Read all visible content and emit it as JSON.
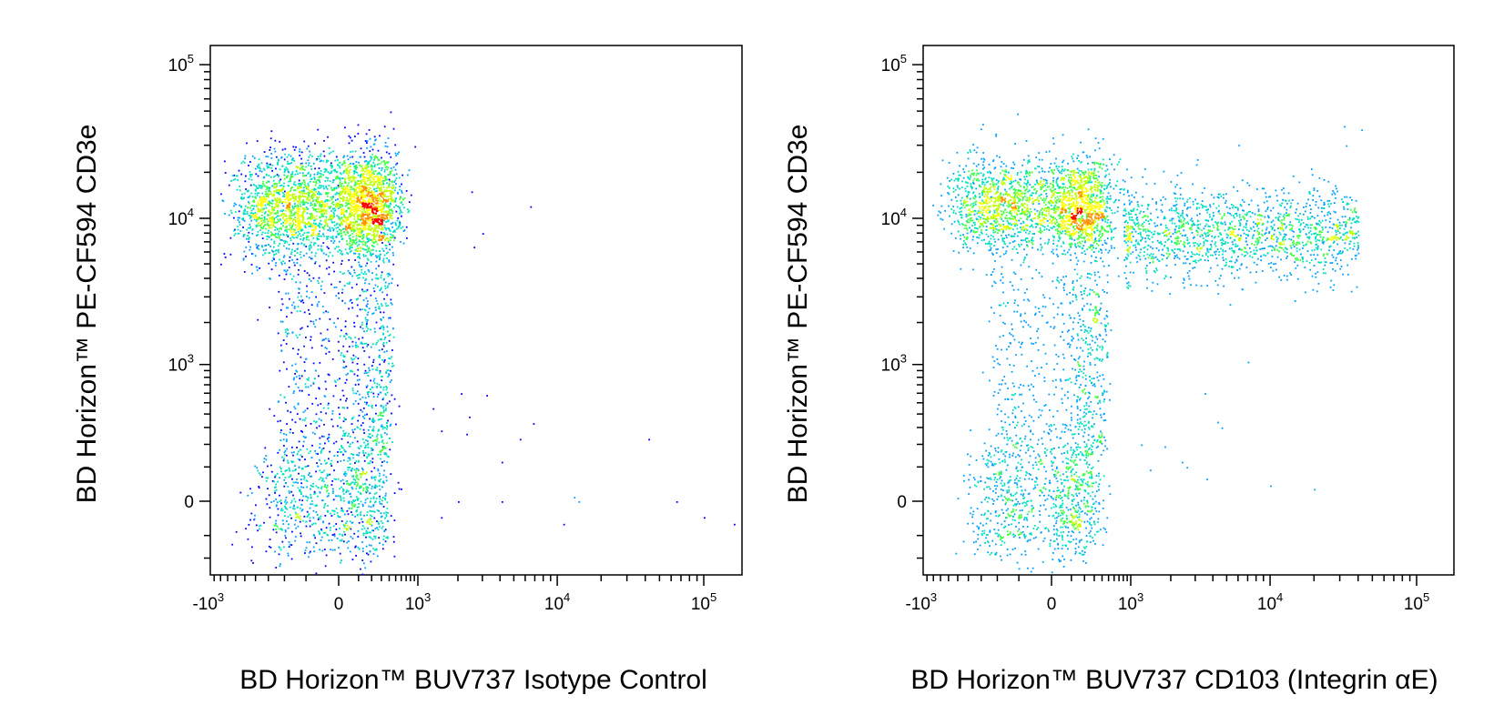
{
  "colors": {
    "background": "#ffffff",
    "axis": "#000000",
    "density_scale": [
      "#0000ff",
      "#00a0ff",
      "#00e0c0",
      "#40ff40",
      "#c0ff00",
      "#ffff00",
      "#ff9000",
      "#ff0000"
    ]
  },
  "chart_data": [
    {
      "type": "scatter",
      "title": "",
      "xlabel": "BD Horizon™ BUV737 Isotype Control",
      "ylabel": "BD Horizon™ PE-CF594 CD3e",
      "xscale": "biexponential",
      "yscale": "biexponential",
      "xlim": [
        -2000,
        200000
      ],
      "ylim": [
        -300,
        250000
      ],
      "x_ticks": [
        {
          "value": -1000,
          "base": "-10",
          "exp": "3"
        },
        {
          "value": 0,
          "base": "0",
          "exp": ""
        },
        {
          "value": 1000,
          "base": "10",
          "exp": "3"
        },
        {
          "value": 10000,
          "base": "10",
          "exp": "4"
        },
        {
          "value": 100000,
          "base": "10",
          "exp": "5"
        }
      ],
      "y_ticks": [
        {
          "value": 0,
          "base": "0",
          "exp": ""
        },
        {
          "value": 1000,
          "base": "10",
          "exp": "3"
        },
        {
          "value": 10000,
          "base": "10",
          "exp": "4"
        },
        {
          "value": 100000,
          "base": "10",
          "exp": "5"
        }
      ],
      "populations": [
        {
          "name": "",
          "center": [
            0,
            12000
          ],
          "spread_x": 250,
          "spread_y_decades": 0.18,
          "count": 3200,
          "peak_density": "high"
        },
        {
          "name": "",
          "center": [
            0,
            0
          ],
          "spread_x": 180,
          "spread_y": 90,
          "count": 900,
          "peak_density": "medium"
        },
        {
          "name": "",
          "x_range": [
            -200,
            400
          ],
          "y_range": [
            150,
            4500
          ],
          "count": 800,
          "peak_density": "low"
        }
      ],
      "outliers": [
        [
          2500,
          15000
        ],
        [
          6500,
          12000
        ],
        [
          3000,
          8000
        ],
        [
          2600,
          6500
        ],
        [
          2100,
          600
        ],
        [
          3200,
          580
        ],
        [
          2400,
          380
        ],
        [
          1300,
          450
        ],
        [
          1500,
          280
        ],
        [
          2300,
          260
        ],
        [
          6800,
          330
        ],
        [
          5500,
          230
        ],
        [
          42000,
          230
        ],
        [
          4100,
          120
        ],
        [
          2000,
          0
        ],
        [
          4100,
          0
        ],
        [
          13000,
          10
        ],
        [
          14000,
          0
        ],
        [
          65000,
          0
        ],
        [
          100000,
          -40
        ],
        [
          160000,
          -60
        ],
        [
          11000,
          -60
        ],
        [
          1500,
          -40
        ]
      ],
      "grid": false,
      "legend": "none"
    },
    {
      "type": "scatter",
      "title": "",
      "xlabel": "BD Horizon™ BUV737 CD103 (Integrin αE)",
      "ylabel": "BD Horizon™ PE-CF594 CD3e",
      "xscale": "biexponential",
      "yscale": "biexponential",
      "xlim": [
        -2000,
        200000
      ],
      "ylim": [
        -300,
        250000
      ],
      "x_ticks": [
        {
          "value": -1000,
          "base": "-10",
          "exp": "3"
        },
        {
          "value": 0,
          "base": "0",
          "exp": ""
        },
        {
          "value": 1000,
          "base": "10",
          "exp": "3"
        },
        {
          "value": 10000,
          "base": "10",
          "exp": "4"
        },
        {
          "value": 100000,
          "base": "10",
          "exp": "5"
        }
      ],
      "y_ticks": [
        {
          "value": 0,
          "base": "0",
          "exp": ""
        },
        {
          "value": 1000,
          "base": "10",
          "exp": "3"
        },
        {
          "value": 10000,
          "base": "10",
          "exp": "4"
        },
        {
          "value": 100000,
          "base": "10",
          "exp": "5"
        }
      ],
      "populations": [
        {
          "name": "",
          "center": [
            0,
            12000
          ],
          "spread_x": 250,
          "spread_y_decades": 0.16,
          "count": 2300,
          "peak_density": "high"
        },
        {
          "name": "",
          "x_range": [
            800,
            40000
          ],
          "center_y": 8000,
          "spread_y_decades": 0.15,
          "count": 1500,
          "peak_density": "low"
        },
        {
          "name": "",
          "center": [
            0,
            0
          ],
          "spread_x": 180,
          "spread_y": 90,
          "count": 900,
          "peak_density": "medium"
        },
        {
          "name": "",
          "x_range": [
            -200,
            400
          ],
          "y_range": [
            150,
            4500
          ],
          "count": 700,
          "peak_density": "low"
        }
      ],
      "outliers": [
        [
          32000,
          40000
        ],
        [
          42000,
          38000
        ],
        [
          33000,
          30000
        ],
        [
          7000,
          1050
        ],
        [
          3500,
          600
        ],
        [
          4300,
          340
        ],
        [
          4600,
          300
        ],
        [
          1800,
          190
        ],
        [
          2400,
          120
        ],
        [
          2600,
          100
        ],
        [
          3600,
          60
        ],
        [
          10000,
          40
        ],
        [
          20000,
          30
        ],
        [
          1200,
          200
        ],
        [
          1400,
          90
        ]
      ],
      "grid": false,
      "legend": "none"
    }
  ]
}
